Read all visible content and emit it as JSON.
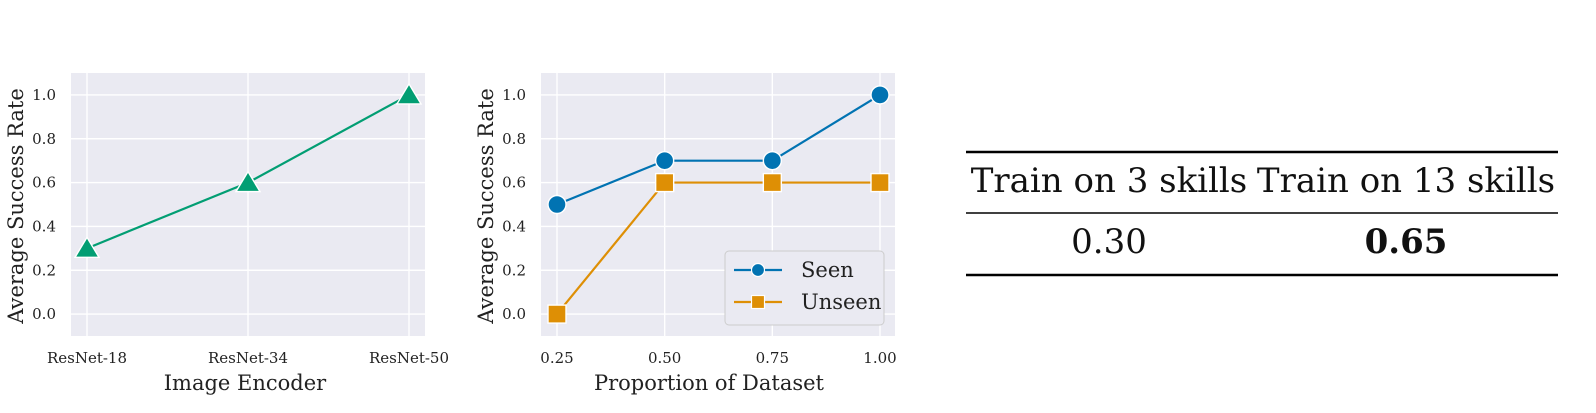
{
  "chart_data": [
    {
      "type": "line",
      "categories": [
        "ResNet-18",
        "ResNet-34",
        "ResNet-50"
      ],
      "series": [
        {
          "values": [
            0.3,
            0.6,
            1.0
          ],
          "color": "#029e73",
          "marker": "triangle"
        }
      ],
      "xlabel": "Image Encoder",
      "ylabel": "Average Success Rate",
      "ylim": [
        -0.1,
        1.1
      ],
      "yticks": [
        "0.0",
        "0.2",
        "0.4",
        "0.6",
        "0.8",
        "1.0"
      ],
      "grid": true
    },
    {
      "type": "line",
      "x": [
        0.25,
        0.5,
        0.75,
        1.0
      ],
      "xticks": [
        "0.25",
        "0.50",
        "0.75",
        "1.00"
      ],
      "series": [
        {
          "name": "Seen",
          "values": [
            0.5,
            0.7,
            0.7,
            1.0
          ],
          "color": "#0173b2",
          "marker": "circle"
        },
        {
          "name": "Unseen",
          "values": [
            0.0,
            0.6,
            0.6,
            0.6
          ],
          "color": "#de8f05",
          "marker": "square"
        }
      ],
      "xlabel": "Proportion of Dataset",
      "ylabel": "Average Success Rate",
      "ylim": [
        -0.1,
        1.1
      ],
      "yticks": [
        "0.0",
        "0.2",
        "0.4",
        "0.6",
        "0.8",
        "1.0"
      ],
      "legend": "bottom-right",
      "grid": true
    },
    {
      "type": "table",
      "headers": [
        "Train on 3 skills",
        "Train on 13 skills"
      ],
      "rows": [
        [
          "0.30",
          "0.65"
        ]
      ],
      "bold_cells": [
        "0.65"
      ]
    }
  ]
}
